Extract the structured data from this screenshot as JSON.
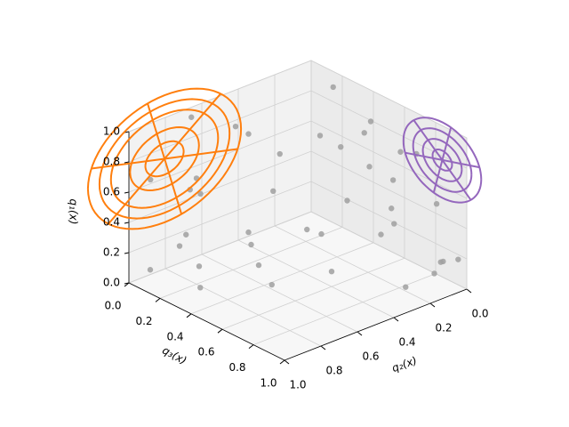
{
  "chart_data": {
    "type": "scatter3d",
    "xlabel": "q₂(x)",
    "ylabel": "q₃(x)",
    "zlabel": "q₁(x)",
    "q2ticks": [
      {
        "value": 0,
        "label": "0.0"
      },
      0.2,
      0.4,
      0.6,
      0.8,
      {
        "value": 1,
        "label": "1.0"
      }
    ],
    "q3ticks": [
      {
        "value": 0,
        "label": "0.0"
      },
      0.2,
      0.4,
      0.6,
      0.8,
      {
        "value": 1,
        "label": "1.0"
      }
    ],
    "q1ticks": [
      {
        "value": 0,
        "label": "0.0"
      },
      0.2,
      0.4,
      0.6,
      0.8,
      {
        "value": 1,
        "label": "1.0"
      }
    ],
    "q1lim": [
      0,
      1
    ],
    "q2lim": [
      0,
      1
    ],
    "q3lim": [
      0,
      1
    ],
    "grid": true,
    "points": {
      "color": "#a0a0a0",
      "q1": [
        0.95,
        0.9,
        0.75,
        0.55,
        0.2,
        0.05,
        0.1,
        0.3,
        0.6,
        0.85,
        0.98,
        0.7,
        0.4,
        0.15,
        0.02,
        0.5,
        0.65,
        0.35,
        0.8,
        0.25,
        0.9,
        0.45,
        0.1,
        0.05,
        0.6,
        0.75,
        0.3,
        0.2,
        0.55,
        0.95,
        0.12,
        0.4,
        0.7,
        0.08,
        0.5,
        0.85,
        0.03,
        0.33,
        0.62,
        0.18
      ],
      "q2": [
        0.05,
        0.1,
        0.02,
        0.08,
        0.1,
        0.05,
        0.4,
        0.6,
        0.3,
        0.5,
        0.7,
        0.8,
        0.9,
        0.95,
        0.7,
        0.2,
        0.15,
        0.45,
        0.25,
        0.85,
        0.35,
        0.65,
        0.2,
        0.9,
        0.55,
        0.05,
        0.1,
        0.03,
        0.75,
        0.6,
        0.5,
        0.3,
        0.95,
        0.25,
        0.02,
        0.15,
        0.6,
        0.8,
        0.4,
        0.07
      ],
      "q3": [
        0.2,
        0.5,
        0.7,
        0.9,
        0.95,
        0.85,
        0.6,
        0.3,
        0.15,
        0.1,
        0.05,
        0.2,
        0.25,
        0.4,
        0.1,
        0.75,
        0.55,
        0.5,
        0.35,
        0.15,
        0.6,
        0.05,
        0.3,
        0.02,
        0.4,
        0.4,
        0.65,
        0.98,
        0.1,
        0.3,
        0.2,
        0.8,
        0.08,
        0.9,
        0.55,
        0.75,
        0.45,
        0.6,
        0.7,
        0.93
      ]
    },
    "wireframes": [
      {
        "color": "#ff7f0e",
        "normal": "q3",
        "center": [
          0.82,
          0.89,
          0.1
        ],
        "radius": 0.42,
        "rings": [
          0.25,
          0.45,
          0.7,
          0.85,
          1
        ],
        "spokes": 6
      },
      {
        "color": "#9467bd",
        "normal": "q2",
        "center": [
          0.88,
          0.1,
          0.96
        ],
        "radius": 0.25,
        "rings": [
          0.25,
          0.5,
          0.75,
          1
        ],
        "spokes": 6
      }
    ]
  }
}
